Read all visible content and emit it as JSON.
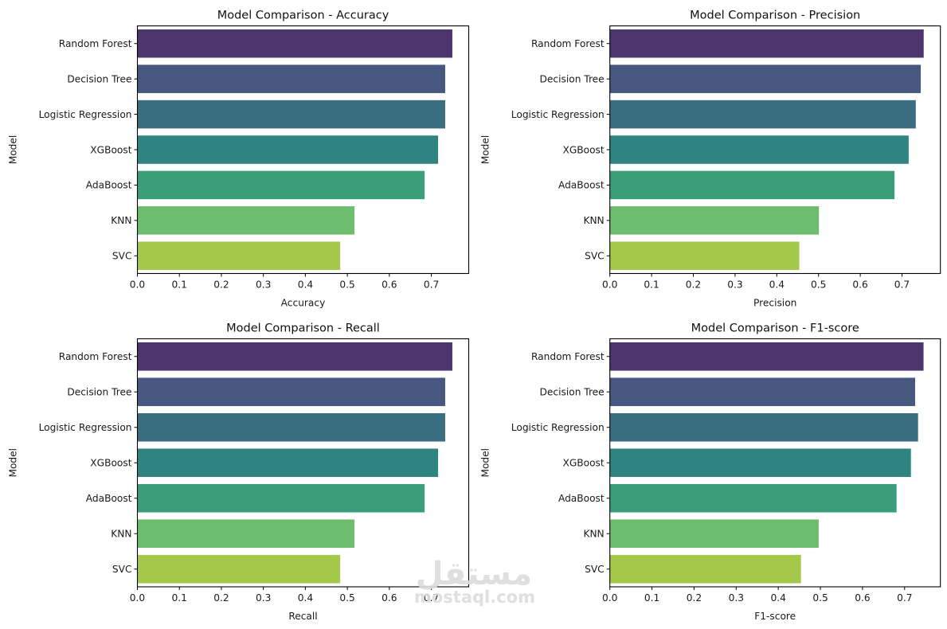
{
  "chart_data": [
    {
      "type": "bar",
      "orientation": "horizontal",
      "title": "Model Comparison - Accuracy",
      "xlabel": "Accuracy",
      "ylabel": "Model",
      "categories": [
        "Random Forest",
        "Decision Tree",
        "Logistic Regression",
        "XGBoost",
        "AdaBoost",
        "KNN",
        "SVC"
      ],
      "values": [
        0.75,
        0.733,
        0.733,
        0.716,
        0.684,
        0.517,
        0.483
      ],
      "xlim": [
        0,
        0.789
      ],
      "xticks": [
        0.0,
        0.1,
        0.2,
        0.3,
        0.4,
        0.5,
        0.6,
        0.7
      ],
      "xtick_labels": [
        "0.0",
        "0.1",
        "0.2",
        "0.3",
        "0.4",
        "0.5",
        "0.6",
        "0.7"
      ],
      "grid": false,
      "colors": [
        "#4b3670",
        "#46587f",
        "#3a6e80",
        "#2e8480",
        "#3b9e7b",
        "#6cbd6e",
        "#a3c84a"
      ]
    },
    {
      "type": "bar",
      "orientation": "horizontal",
      "title": "Model Comparison - Precision",
      "xlabel": "Precision",
      "ylabel": "Model",
      "categories": [
        "Random Forest",
        "Decision Tree",
        "Logistic Regression",
        "XGBoost",
        "AdaBoost",
        "KNN",
        "SVC"
      ],
      "values": [
        0.752,
        0.745,
        0.733,
        0.716,
        0.682,
        0.501,
        0.454
      ],
      "xlim": [
        0,
        0.792
      ],
      "xticks": [
        0.0,
        0.1,
        0.2,
        0.3,
        0.4,
        0.5,
        0.6,
        0.7
      ],
      "xtick_labels": [
        "0.0",
        "0.1",
        "0.2",
        "0.3",
        "0.4",
        "0.5",
        "0.6",
        "0.7"
      ],
      "grid": false,
      "colors": [
        "#4b3670",
        "#46587f",
        "#3a6e80",
        "#2e8480",
        "#3b9e7b",
        "#6cbd6e",
        "#a3c84a"
      ]
    },
    {
      "type": "bar",
      "orientation": "horizontal",
      "title": "Model Comparison - Recall",
      "xlabel": "Recall",
      "ylabel": "Model",
      "categories": [
        "Random Forest",
        "Decision Tree",
        "Logistic Regression",
        "XGBoost",
        "AdaBoost",
        "KNN",
        "SVC"
      ],
      "values": [
        0.75,
        0.733,
        0.733,
        0.716,
        0.684,
        0.517,
        0.483
      ],
      "xlim": [
        0,
        0.789
      ],
      "xticks": [
        0.0,
        0.1,
        0.2,
        0.3,
        0.4,
        0.5,
        0.6,
        0.7
      ],
      "xtick_labels": [
        "0.0",
        "0.1",
        "0.2",
        "0.3",
        "0.4",
        "0.5",
        "0.6",
        "0.7"
      ],
      "grid": false,
      "colors": [
        "#4b3670",
        "#46587f",
        "#3a6e80",
        "#2e8480",
        "#3b9e7b",
        "#6cbd6e",
        "#a3c84a"
      ]
    },
    {
      "type": "bar",
      "orientation": "horizontal",
      "title": "Model Comparison - F1-score",
      "xlabel": "F1-score",
      "ylabel": "Model",
      "categories": [
        "Random Forest",
        "Decision Tree",
        "Logistic Regression",
        "XGBoost",
        "AdaBoost",
        "KNN",
        "SVC"
      ],
      "values": [
        0.745,
        0.725,
        0.732,
        0.715,
        0.681,
        0.496,
        0.454
      ],
      "xlim": [
        0,
        0.785
      ],
      "xticks": [
        0.0,
        0.1,
        0.2,
        0.3,
        0.4,
        0.5,
        0.6,
        0.7
      ],
      "xtick_labels": [
        "0.0",
        "0.1",
        "0.2",
        "0.3",
        "0.4",
        "0.5",
        "0.6",
        "0.7"
      ],
      "grid": false,
      "colors": [
        "#4b3670",
        "#46587f",
        "#3a6e80",
        "#2e8480",
        "#3b9e7b",
        "#6cbd6e",
        "#a3c84a"
      ]
    }
  ],
  "watermark": {
    "arabic": "مستقل",
    "latin": "mostaql.com"
  }
}
